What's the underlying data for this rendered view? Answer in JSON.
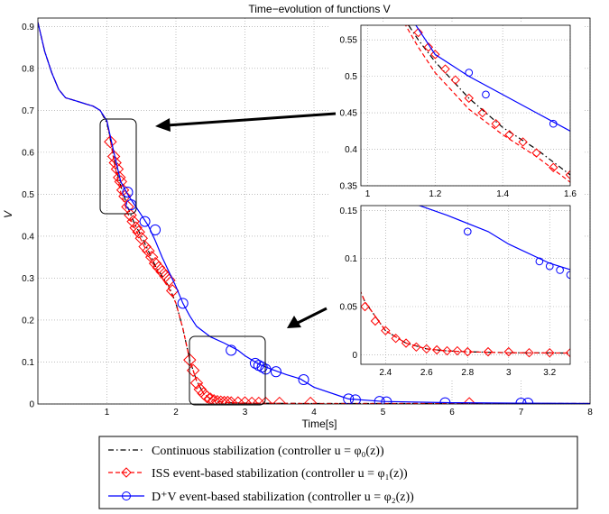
{
  "chart_data": [
    {
      "id": "main",
      "type": "line",
      "title": "Time−evolution of functions V",
      "xlabel": "Time[s]",
      "ylabel": "V",
      "xlim": [
        0,
        8
      ],
      "ylim": [
        0,
        0.92
      ],
      "xticks": [
        1,
        2,
        3,
        4,
        5,
        6,
        7,
        8
      ],
      "yticks": [
        0,
        0.1,
        0.2,
        0.3,
        0.4,
        0.5,
        0.6,
        0.7,
        0.8,
        0.9
      ],
      "grid": true,
      "series": [
        {
          "name": "Continuous stabilization (controller u = φ₀(z))",
          "color": "#000000",
          "style": "dashdot",
          "marker": "none",
          "x": [
            0,
            0.1,
            0.2,
            0.3,
            0.4,
            0.5,
            0.6,
            0.7,
            0.8,
            0.9,
            1.0,
            1.05,
            1.1,
            1.15,
            1.2,
            1.3,
            1.4,
            1.5,
            1.6,
            1.7,
            1.8,
            1.9,
            2.0,
            2.1,
            2.2,
            2.3,
            2.4,
            2.5,
            2.6,
            2.7,
            2.8,
            3.0,
            3.5,
            4.0,
            5.0,
            6.0,
            7.0,
            8.0
          ],
          "y": [
            0.91,
            0.84,
            0.79,
            0.75,
            0.73,
            0.725,
            0.72,
            0.715,
            0.71,
            0.7,
            0.67,
            0.63,
            0.585,
            0.55,
            0.52,
            0.47,
            0.43,
            0.4,
            0.365,
            0.33,
            0.305,
            0.28,
            0.24,
            0.18,
            0.105,
            0.055,
            0.025,
            0.012,
            0.006,
            0.004,
            0.003,
            0.002,
            0.0015,
            0.001,
            0.001,
            0.001,
            0.001,
            0.001
          ]
        },
        {
          "name": "ISS event-based stabilization (controller u = φ₁(z))",
          "color": "#ff0000",
          "style": "dashed",
          "marker": "diamond",
          "x": [
            0,
            0.1,
            0.2,
            0.3,
            0.4,
            0.5,
            0.6,
            0.7,
            0.8,
            0.9,
            1.0,
            1.05,
            1.1,
            1.15,
            1.2,
            1.3,
            1.4,
            1.5,
            1.6,
            1.7,
            1.8,
            1.9,
            2.0,
            2.1,
            2.2,
            2.3,
            2.4,
            2.5,
            2.6,
            2.7,
            2.8,
            3.0,
            3.5,
            4.0,
            5.0,
            6.0,
            7.0,
            8.0
          ],
          "y": [
            0.91,
            0.84,
            0.79,
            0.75,
            0.73,
            0.725,
            0.72,
            0.715,
            0.71,
            0.7,
            0.675,
            0.63,
            0.58,
            0.54,
            0.505,
            0.455,
            0.42,
            0.39,
            0.355,
            0.325,
            0.3,
            0.275,
            0.24,
            0.18,
            0.105,
            0.055,
            0.025,
            0.012,
            0.006,
            0.004,
            0.003,
            0.002,
            0.0015,
            0.001,
            0.001,
            0.001,
            0.001,
            0.001
          ],
          "markers_x": [
            1.05,
            1.1,
            1.12,
            1.15,
            1.18,
            1.2,
            1.23,
            1.26,
            1.3,
            1.34,
            1.38,
            1.42,
            1.46,
            1.5,
            1.55,
            1.6,
            1.65,
            1.7,
            1.75,
            1.8,
            1.85,
            1.9,
            1.95,
            2.2,
            2.25,
            2.3,
            2.35,
            2.4,
            2.45,
            2.5,
            2.55,
            2.6,
            2.65,
            2.7,
            2.75,
            2.8,
            2.9,
            3.0,
            3.1,
            3.2,
            3.3,
            3.5,
            3.95,
            6.25
          ],
          "markers_y": [
            0.625,
            0.59,
            0.575,
            0.56,
            0.54,
            0.53,
            0.51,
            0.495,
            0.47,
            0.45,
            0.435,
            0.42,
            0.41,
            0.395,
            0.375,
            0.365,
            0.35,
            0.335,
            0.325,
            0.315,
            0.305,
            0.295,
            0.27,
            0.105,
            0.08,
            0.05,
            0.035,
            0.025,
            0.017,
            0.012,
            0.008,
            0.006,
            0.005,
            0.004,
            0.004,
            0.003,
            0.003,
            0.003,
            0.002,
            0.002,
            0.002,
            0.002,
            0.002,
            0.001
          ]
        },
        {
          "name": "D⁺V event-based stabilization (controller u = φ₂(z))",
          "color": "#0000ff",
          "style": "solid",
          "marker": "circle",
          "x": [
            0,
            0.1,
            0.2,
            0.3,
            0.4,
            0.5,
            0.6,
            0.7,
            0.8,
            0.9,
            1.0,
            1.1,
            1.2,
            1.3,
            1.4,
            1.5,
            1.6,
            1.7,
            1.8,
            1.9,
            2.0,
            2.1,
            2.2,
            2.3,
            2.5,
            2.7,
            2.9,
            3.0,
            3.2,
            3.4,
            3.6,
            3.8,
            4.0,
            4.5,
            5.0,
            6.0,
            7.0,
            8.0
          ],
          "y": [
            0.91,
            0.84,
            0.79,
            0.75,
            0.73,
            0.725,
            0.72,
            0.715,
            0.71,
            0.7,
            0.675,
            0.6,
            0.53,
            0.5,
            0.475,
            0.45,
            0.425,
            0.39,
            0.35,
            0.315,
            0.28,
            0.24,
            0.21,
            0.185,
            0.16,
            0.145,
            0.128,
            0.115,
            0.095,
            0.082,
            0.07,
            0.06,
            0.04,
            0.012,
            0.006,
            0.003,
            0.002,
            0.001
          ],
          "markers_x": [
            1.3,
            1.35,
            1.55,
            1.7,
            2.1,
            2.8,
            3.15,
            3.2,
            3.25,
            3.3,
            3.45,
            3.85,
            4.5,
            4.6,
            4.95,
            5.05,
            5.9,
            7.0,
            7.1
          ],
          "markers_y": [
            0.505,
            0.475,
            0.435,
            0.415,
            0.24,
            0.128,
            0.097,
            0.092,
            0.088,
            0.083,
            0.077,
            0.058,
            0.012,
            0.01,
            0.006,
            0.005,
            0.003,
            0.002,
            0.002
          ]
        }
      ]
    },
    {
      "id": "inset-top",
      "type": "line",
      "xlim": [
        0.98,
        1.6
      ],
      "ylim": [
        0.35,
        0.57
      ],
      "xticks": [
        1,
        1.2,
        1.4,
        1.6
      ],
      "yticks": [
        0.35,
        0.4,
        0.45,
        0.5,
        0.55
      ],
      "grid": true
    },
    {
      "id": "inset-bottom",
      "type": "line",
      "xlim": [
        2.28,
        3.3
      ],
      "ylim": [
        -0.01,
        0.155
      ],
      "xticks": [
        2.4,
        2.6,
        2.8,
        3,
        3.2
      ],
      "yticks": [
        0,
        0.05,
        0.1,
        0.15
      ],
      "grid": true
    }
  ],
  "legend": {
    "placement": "bottom-center",
    "entries": [
      {
        "label": "Continuous stabilization (controller u = φ₀(z))"
      },
      {
        "label": "ISS event-based stabilization (controller u = φ₁(z))"
      },
      {
        "label": "D⁺V event-based stabilization (controller u = φ₂(z))"
      }
    ]
  }
}
